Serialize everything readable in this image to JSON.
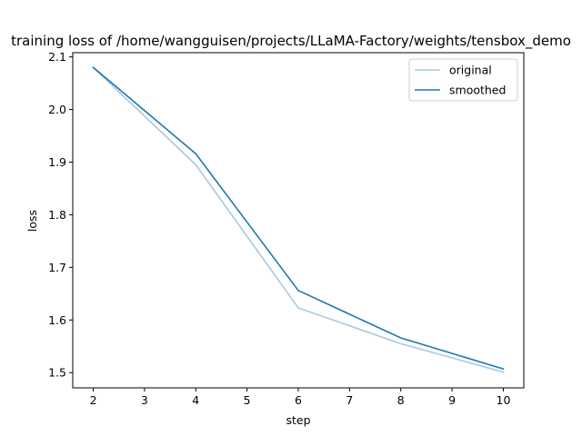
{
  "chart_data": {
    "type": "line",
    "title": "training loss of /home/wangguisen/projects/LLaMA-Factory/weights/tensbox_demo",
    "xlabel": "step",
    "ylabel": "loss",
    "x": [
      2,
      4,
      6,
      8,
      10
    ],
    "xlim": [
      1.6,
      10.4
    ],
    "ylim": [
      1.471,
      2.108
    ],
    "xticks": [
      2,
      3,
      4,
      5,
      6,
      7,
      8,
      9,
      10
    ],
    "yticks": [
      1.5,
      1.6,
      1.7,
      1.8,
      1.9,
      2.0,
      2.1
    ],
    "ytick_labels": [
      "1.5",
      "1.6",
      "1.7",
      "1.8",
      "1.9",
      "2.0",
      "2.1"
    ],
    "grid": false,
    "legend_position": "top-right",
    "series": [
      {
        "name": "original",
        "color": "#a6c9e3",
        "values": [
          2.08,
          1.895,
          1.623,
          1.555,
          1.501
        ]
      },
      {
        "name": "smoothed",
        "color": "#1f77b4",
        "values": [
          2.08,
          1.916,
          1.656,
          1.566,
          1.507
        ]
      }
    ]
  }
}
